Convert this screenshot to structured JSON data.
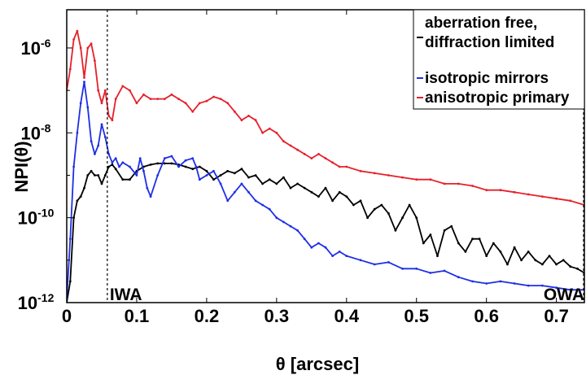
{
  "chart_data": {
    "type": "line",
    "xlabel": "θ [arcsec]",
    "ylabel": "NPI(θ)",
    "xlim": [
      0,
      0.74
    ],
    "ylim_log10": [
      -12,
      -5.1
    ],
    "y_scale": "log",
    "grid": false,
    "legend_position": "top-right",
    "x_ticks": [
      "0",
      "0.1",
      "0.2",
      "0.3",
      "0.4",
      "0.5",
      "0.6",
      "0.7"
    ],
    "x_tick_values": [
      0,
      0.1,
      0.2,
      0.3,
      0.4,
      0.5,
      0.6,
      0.7
    ],
    "y_ticks": [
      {
        "base": "10",
        "exp": "-6",
        "log": -6
      },
      {
        "base": "10",
        "exp": "-8",
        "log": -8
      },
      {
        "base": "10",
        "exp": "-10",
        "log": -10
      },
      {
        "base": "10",
        "exp": "-12",
        "log": -12
      }
    ],
    "vlines": [
      {
        "x": 0.058,
        "label": "IWA"
      },
      {
        "x": 0.74,
        "label": "OWA"
      }
    ],
    "legend_lines": [
      "aberration free,",
      "diffraction limited"
    ],
    "series": [
      {
        "name": "aberration free, diffraction limited",
        "color": "#000000",
        "x": [
          0,
          0.005,
          0.01,
          0.015,
          0.02,
          0.025,
          0.03,
          0.035,
          0.04,
          0.045,
          0.05,
          0.055,
          0.06,
          0.065,
          0.07,
          0.08,
          0.09,
          0.1,
          0.11,
          0.12,
          0.13,
          0.14,
          0.15,
          0.16,
          0.17,
          0.18,
          0.19,
          0.2,
          0.21,
          0.22,
          0.23,
          0.24,
          0.25,
          0.26,
          0.27,
          0.28,
          0.29,
          0.3,
          0.31,
          0.32,
          0.33,
          0.34,
          0.35,
          0.36,
          0.37,
          0.38,
          0.39,
          0.4,
          0.41,
          0.42,
          0.43,
          0.44,
          0.45,
          0.46,
          0.47,
          0.48,
          0.49,
          0.5,
          0.51,
          0.52,
          0.53,
          0.54,
          0.55,
          0.56,
          0.57,
          0.58,
          0.59,
          0.6,
          0.61,
          0.62,
          0.63,
          0.64,
          0.65,
          0.66,
          0.67,
          0.68,
          0.69,
          0.7,
          0.71,
          0.72,
          0.73,
          0.74
        ],
        "log10": [
          -12,
          -11.5,
          -10.0,
          -9.6,
          -9.5,
          -9.3,
          -9.0,
          -8.9,
          -9.0,
          -9.0,
          -9.2,
          -9.0,
          -8.8,
          -8.75,
          -8.85,
          -9.1,
          -9.1,
          -8.9,
          -8.8,
          -8.75,
          -8.72,
          -8.72,
          -8.72,
          -8.75,
          -8.8,
          -8.85,
          -8.8,
          -8.9,
          -9.1,
          -9.0,
          -8.9,
          -8.95,
          -8.85,
          -9.05,
          -9.0,
          -9.2,
          -9.1,
          -9.2,
          -9.05,
          -9.3,
          -9.2,
          -9.3,
          -9.4,
          -9.5,
          -9.3,
          -9.6,
          -9.4,
          -9.5,
          -9.7,
          -9.6,
          -10.0,
          -9.8,
          -9.7,
          -9.9,
          -10.3,
          -10.0,
          -9.7,
          -10.0,
          -10.6,
          -10.4,
          -10.9,
          -10.3,
          -10.2,
          -10.6,
          -10.8,
          -10.5,
          -10.5,
          -10.9,
          -10.6,
          -10.8,
          -11.1,
          -10.7,
          -11.0,
          -10.8,
          -11.0,
          -11.1,
          -10.9,
          -11.1,
          -11.0,
          -11.15,
          -11.2,
          -11.3
        ]
      },
      {
        "name": "isotropic mirrors",
        "color": "#1f2ee6",
        "x": [
          0,
          0.005,
          0.01,
          0.015,
          0.02,
          0.025,
          0.03,
          0.035,
          0.04,
          0.045,
          0.05,
          0.055,
          0.06,
          0.065,
          0.07,
          0.075,
          0.08,
          0.09,
          0.1,
          0.105,
          0.11,
          0.115,
          0.12,
          0.13,
          0.14,
          0.15,
          0.16,
          0.17,
          0.18,
          0.185,
          0.19,
          0.2,
          0.21,
          0.22,
          0.23,
          0.24,
          0.25,
          0.26,
          0.27,
          0.28,
          0.29,
          0.3,
          0.31,
          0.32,
          0.33,
          0.34,
          0.35,
          0.36,
          0.37,
          0.38,
          0.39,
          0.4,
          0.42,
          0.44,
          0.46,
          0.48,
          0.5,
          0.52,
          0.54,
          0.56,
          0.58,
          0.6,
          0.62,
          0.64,
          0.66,
          0.68,
          0.7,
          0.72,
          0.74
        ],
        "log10": [
          -11.9,
          -10.5,
          -8.8,
          -8.0,
          -7.3,
          -6.8,
          -7.4,
          -8.2,
          -8.5,
          -8.3,
          -7.8,
          -8.1,
          -8.5,
          -8.7,
          -8.6,
          -8.8,
          -8.7,
          -8.8,
          -9.0,
          -8.6,
          -8.9,
          -9.3,
          -9.5,
          -9.0,
          -8.6,
          -8.55,
          -8.8,
          -8.65,
          -8.6,
          -8.8,
          -9.1,
          -9.0,
          -8.9,
          -9.2,
          -9.6,
          -9.4,
          -9.2,
          -9.4,
          -9.6,
          -9.7,
          -9.8,
          -10.0,
          -10.1,
          -10.2,
          -10.3,
          -10.5,
          -10.7,
          -10.6,
          -10.7,
          -10.9,
          -10.8,
          -10.9,
          -11.0,
          -11.1,
          -11.05,
          -11.2,
          -11.2,
          -11.3,
          -11.25,
          -11.4,
          -11.5,
          -11.55,
          -11.5,
          -11.55,
          -11.6,
          -11.6,
          -11.65,
          -11.7,
          -11.7
        ]
      },
      {
        "name": "anisotropic primary",
        "color": "#e6202a",
        "x": [
          0,
          0.005,
          0.01,
          0.015,
          0.02,
          0.025,
          0.03,
          0.035,
          0.04,
          0.045,
          0.05,
          0.055,
          0.06,
          0.065,
          0.07,
          0.08,
          0.09,
          0.1,
          0.11,
          0.12,
          0.13,
          0.14,
          0.15,
          0.16,
          0.17,
          0.18,
          0.19,
          0.2,
          0.21,
          0.22,
          0.23,
          0.24,
          0.25,
          0.26,
          0.27,
          0.28,
          0.29,
          0.3,
          0.31,
          0.32,
          0.33,
          0.34,
          0.35,
          0.36,
          0.37,
          0.38,
          0.39,
          0.4,
          0.42,
          0.44,
          0.46,
          0.48,
          0.5,
          0.52,
          0.54,
          0.56,
          0.58,
          0.6,
          0.62,
          0.64,
          0.66,
          0.68,
          0.7,
          0.72,
          0.74
        ],
        "log10": [
          -7.0,
          -6.5,
          -5.8,
          -5.6,
          -6.0,
          -6.7,
          -6.0,
          -5.9,
          -6.3,
          -7.0,
          -7.3,
          -7.0,
          -7.6,
          -7.7,
          -7.2,
          -6.9,
          -7.0,
          -7.3,
          -7.1,
          -7.2,
          -7.2,
          -7.2,
          -7.1,
          -7.2,
          -7.3,
          -7.5,
          -7.3,
          -7.25,
          -7.15,
          -7.2,
          -7.3,
          -7.5,
          -7.7,
          -7.6,
          -7.7,
          -8.0,
          -7.9,
          -8.0,
          -8.2,
          -8.3,
          -8.4,
          -8.5,
          -8.6,
          -8.5,
          -8.6,
          -8.7,
          -8.8,
          -8.8,
          -8.9,
          -8.95,
          -9.0,
          -9.05,
          -9.1,
          -9.1,
          -9.2,
          -9.2,
          -9.25,
          -9.35,
          -9.35,
          -9.4,
          -9.45,
          -9.5,
          -9.55,
          -9.6,
          -9.7
        ]
      }
    ]
  }
}
